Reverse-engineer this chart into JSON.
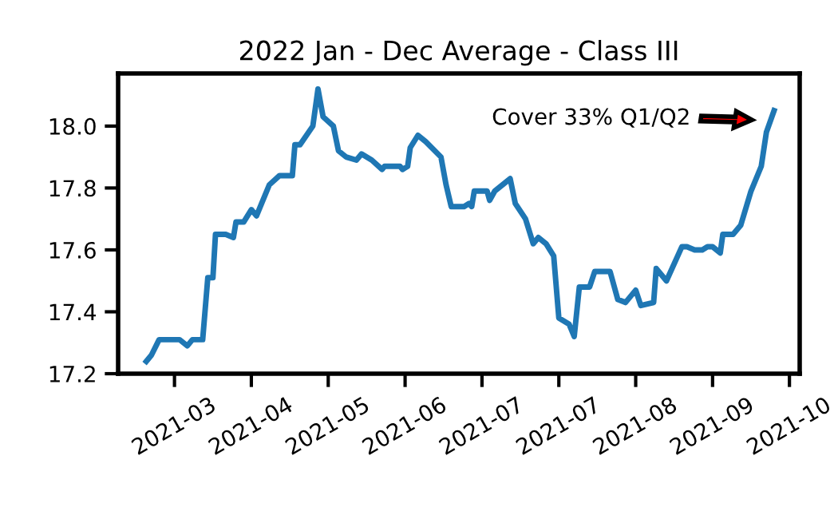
{
  "chart_data": {
    "type": "line",
    "title": "2022 Jan - Dec Average - Class III",
    "x": [
      "2021-02-20",
      "2021-02-22",
      "2021-02-25",
      "2021-03-05",
      "2021-03-08",
      "2021-03-10",
      "2021-03-14",
      "2021-03-16",
      "2021-03-18",
      "2021-03-19",
      "2021-03-23",
      "2021-03-26",
      "2021-03-27",
      "2021-03-30",
      "2021-04-02",
      "2021-04-04",
      "2021-04-09",
      "2021-04-13",
      "2021-04-18",
      "2021-04-19",
      "2021-04-21",
      "2021-04-26",
      "2021-04-28",
      "2021-04-30",
      "2021-05-04",
      "2021-05-06",
      "2021-05-09",
      "2021-05-13",
      "2021-05-15",
      "2021-05-19",
      "2021-05-23",
      "2021-05-24",
      "2021-05-30",
      "2021-05-31",
      "2021-06-02",
      "2021-06-03",
      "2021-06-06",
      "2021-06-09",
      "2021-06-15",
      "2021-06-17",
      "2021-06-19",
      "2021-06-24",
      "2021-06-26",
      "2021-06-27",
      "2021-06-28",
      "2021-07-03",
      "2021-07-04",
      "2021-07-06",
      "2021-07-12",
      "2021-07-14",
      "2021-07-18",
      "2021-07-21",
      "2021-07-23",
      "2021-07-26",
      "2021-07-29",
      "2021-07-31",
      "2021-08-04",
      "2021-08-06",
      "2021-08-08",
      "2021-08-12",
      "2021-08-14",
      "2021-08-20",
      "2021-08-23",
      "2021-08-26",
      "2021-08-30",
      "2021-09-01",
      "2021-09-06",
      "2021-09-07",
      "2021-09-11",
      "2021-09-17",
      "2021-09-19",
      "2021-09-22",
      "2021-09-25",
      "2021-09-27",
      "2021-09-29",
      "2021-10-02",
      "2021-10-03",
      "2021-10-07",
      "2021-10-10",
      "2021-10-14",
      "2021-10-18",
      "2021-10-20",
      "2021-10-23"
    ],
    "series": [
      {
        "color": "#1f77b4",
        "values": [
          17.24,
          17.26,
          17.31,
          17.31,
          17.29,
          17.31,
          17.31,
          17.51,
          17.51,
          17.65,
          17.65,
          17.64,
          17.69,
          17.69,
          17.73,
          17.71,
          17.81,
          17.84,
          17.84,
          17.94,
          17.94,
          18.0,
          18.12,
          18.03,
          18.0,
          17.92,
          17.9,
          17.89,
          17.91,
          17.89,
          17.86,
          17.87,
          17.87,
          17.86,
          17.87,
          17.93,
          17.97,
          17.95,
          17.9,
          17.81,
          17.74,
          17.74,
          17.75,
          17.74,
          17.79,
          17.79,
          17.76,
          17.79,
          17.83,
          17.75,
          17.7,
          17.62,
          17.64,
          17.62,
          17.58,
          17.38,
          17.36,
          17.32,
          17.48,
          17.48,
          17.53,
          17.53,
          17.44,
          17.43,
          17.47,
          17.42,
          17.43,
          17.54,
          17.5,
          17.61,
          17.61,
          17.6,
          17.6,
          17.61,
          17.61,
          17.59,
          17.65,
          17.65,
          17.68,
          17.79,
          17.87,
          17.98,
          18.05
        ]
      }
    ],
    "xlim": [
      "2021-02-09",
      "2021-11-02"
    ],
    "xticks": [
      {
        "value": "2021-03-03",
        "label": "2021-03"
      },
      {
        "value": "2021-04-02",
        "label": "2021-04"
      },
      {
        "value": "2021-05-02",
        "label": "2021-05"
      },
      {
        "value": "2021-06-01",
        "label": "2021-06"
      },
      {
        "value": "2021-07-01",
        "label": "2021-07"
      },
      {
        "value": "2021-07-31",
        "label": "2021-07"
      },
      {
        "value": "2021-08-30",
        "label": "2021-08"
      },
      {
        "value": "2021-09-29",
        "label": "2021-09"
      },
      {
        "value": "2021-10-29",
        "label": "2021-10"
      }
    ],
    "ylim": [
      17.2,
      18.17
    ],
    "yticks": [
      {
        "value": 17.2,
        "label": "17.2"
      },
      {
        "value": 17.4,
        "label": "17.4"
      },
      {
        "value": 17.6,
        "label": "17.6"
      },
      {
        "value": 17.8,
        "label": "17.8"
      },
      {
        "value": 18.0,
        "label": "18.0"
      }
    ],
    "annotations": [
      "Cover 33% Q1/Q2"
    ],
    "grid": false,
    "marker": "none",
    "line_style": "solid"
  }
}
